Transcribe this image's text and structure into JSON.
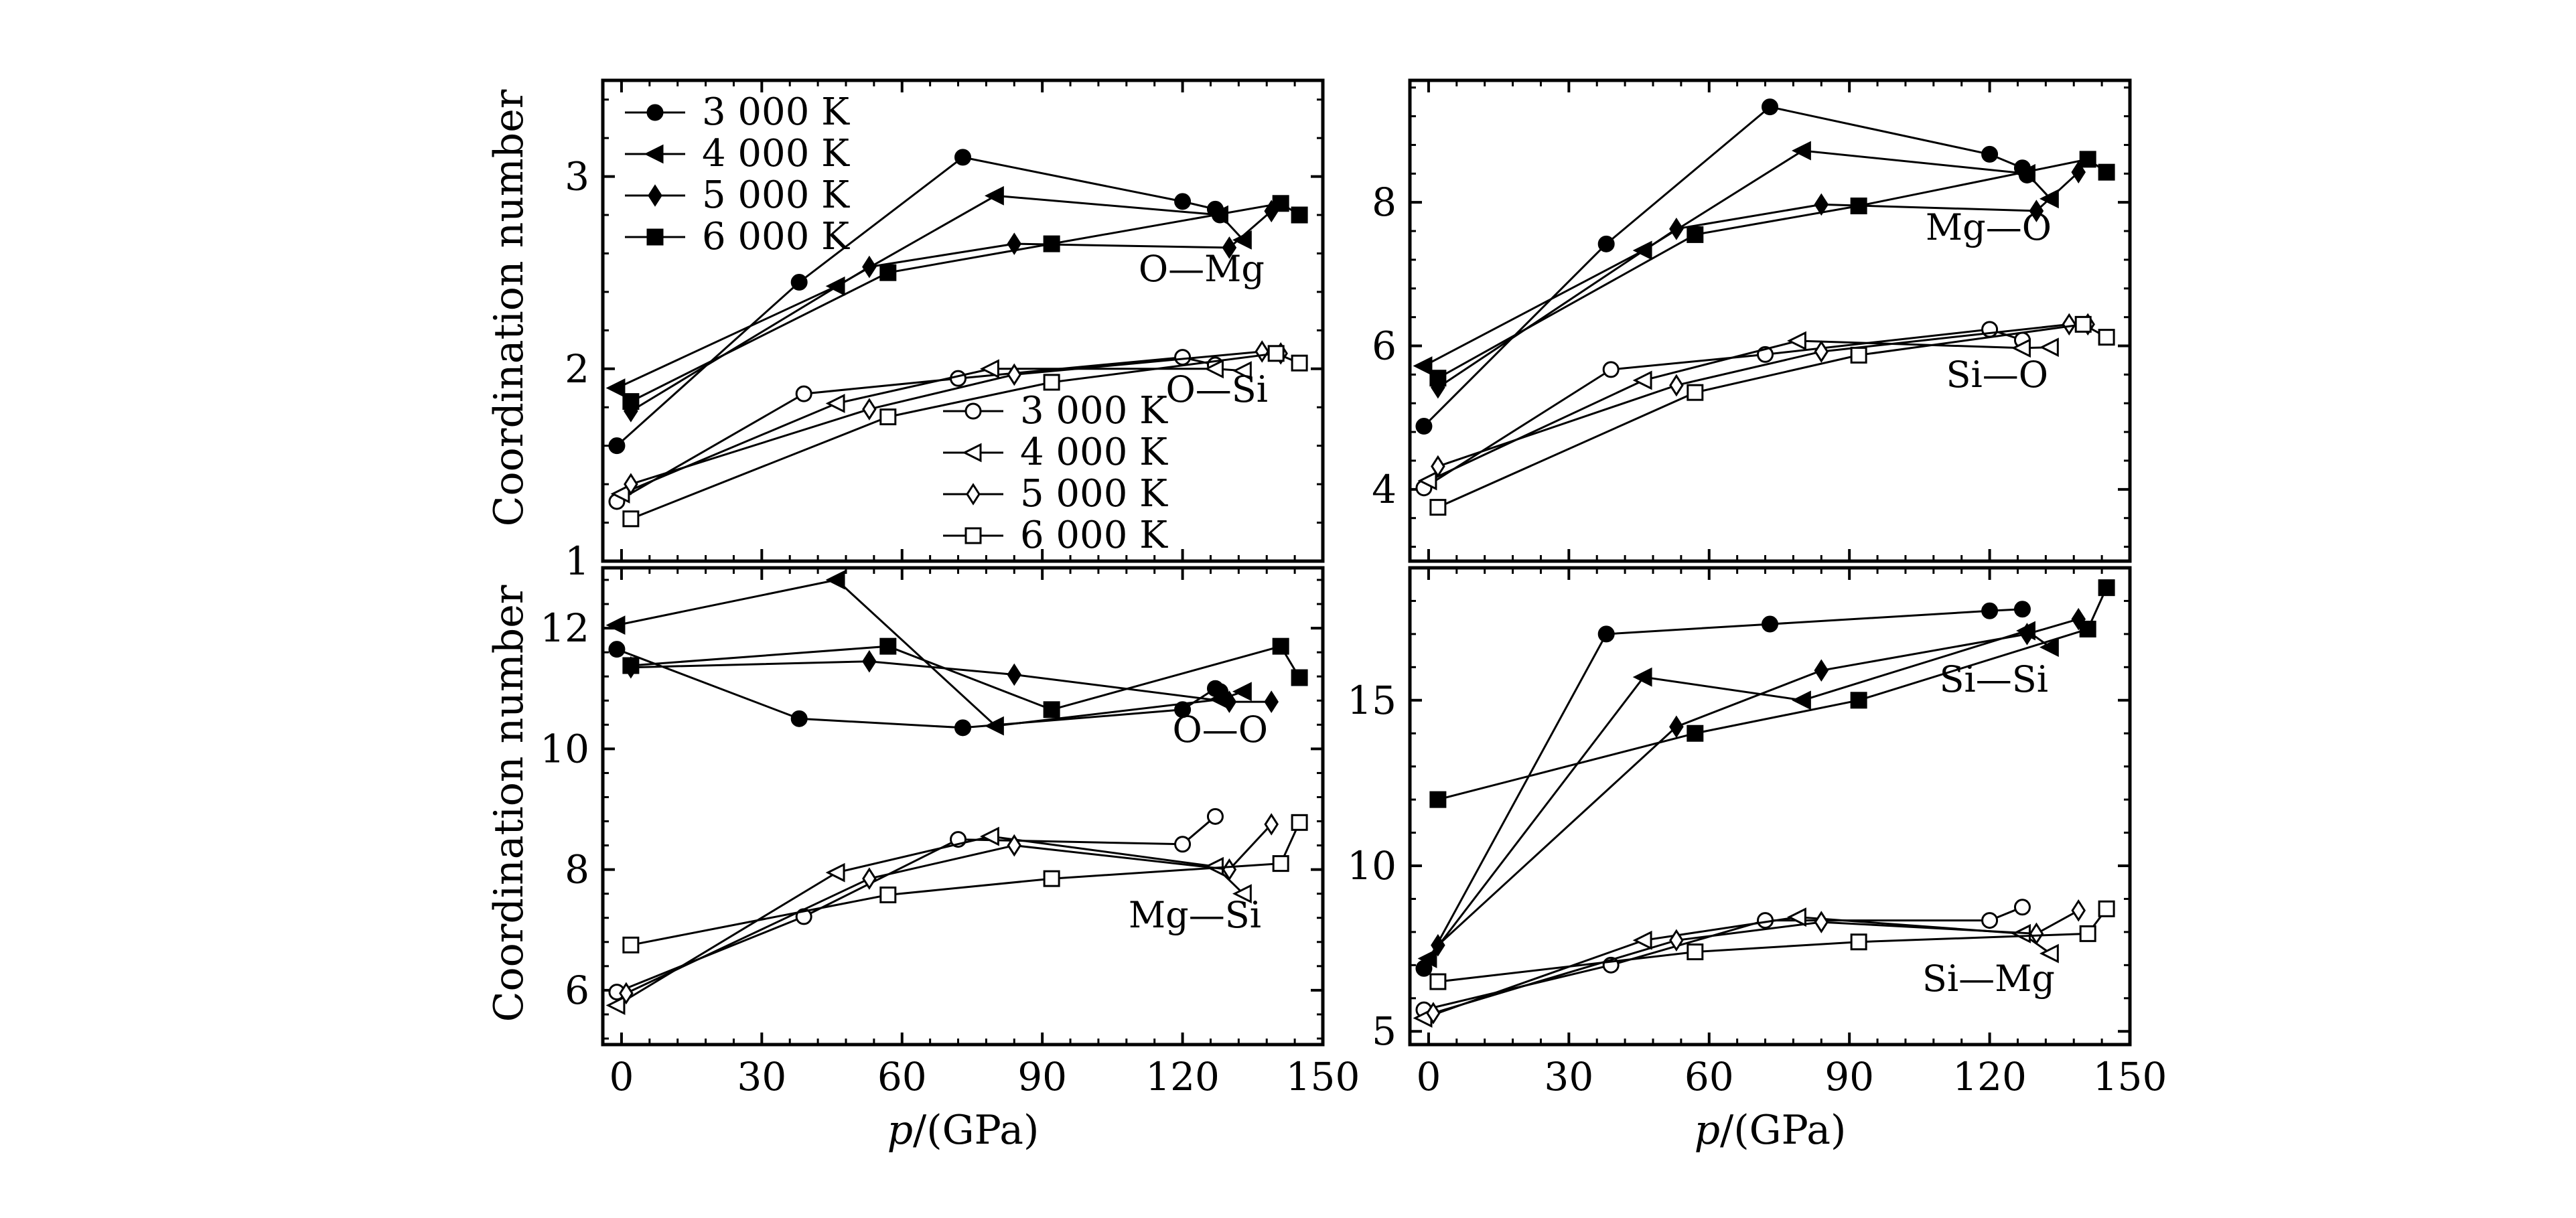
{
  "figure": {
    "y_label": "Coordination number",
    "x_label_symbol": "p",
    "x_label_unit": "/(GPa)"
  },
  "temperatures": [
    "3 000 K",
    "4 000 K",
    "5 000 K",
    "6 000 K"
  ],
  "marker_shapes": [
    "circle",
    "triangle-left",
    "diamond",
    "square"
  ],
  "colors": {
    "line": "#000000",
    "filled": "#000000",
    "open": "#ffffff"
  },
  "chart_data": [
    {
      "type": "line",
      "panel": "top-left",
      "xlim": [
        -4,
        150
      ],
      "ylim": [
        1,
        3.5
      ],
      "xticks": [
        0,
        30,
        60,
        90,
        120,
        150
      ],
      "yticks": [
        1,
        2,
        3
      ],
      "ytick_labels": [
        "1",
        "2",
        "3"
      ],
      "show_xtick_labels": false,
      "groups": [
        {
          "label": "O—Mg",
          "fill": "filled",
          "series": [
            {
              "name": "3 000 K",
              "marker": "circle",
              "x": [
                -1,
                38,
                73,
                120,
                127,
                128
              ],
              "y": [
                1.6,
                2.45,
                3.1,
                2.87,
                2.83,
                2.8
              ]
            },
            {
              "name": "4 000 K",
              "marker": "triangle-left",
              "x": [
                -1,
                46,
                80,
                128,
                133
              ],
              "y": [
                1.9,
                2.43,
                2.9,
                2.8,
                2.67
              ]
            },
            {
              "name": "5 000 K",
              "marker": "diamond",
              "x": [
                2,
                53,
                84,
                130,
                139
              ],
              "y": [
                1.78,
                2.53,
                2.65,
                2.63,
                2.82
              ]
            },
            {
              "name": "6 000 K",
              "marker": "square",
              "x": [
                2,
                57,
                92,
                141,
                145
              ],
              "y": [
                1.83,
                2.5,
                2.65,
                2.86,
                2.8
              ]
            }
          ]
        },
        {
          "label": "O—Si",
          "fill": "open",
          "series": [
            {
              "name": "3 000 K",
              "marker": "circle",
              "x": [
                -1,
                39,
                72,
                120,
                127
              ],
              "y": [
                1.31,
                1.87,
                1.95,
                2.06,
                2.02
              ]
            },
            {
              "name": "4 000 K",
              "marker": "triangle-left",
              "x": [
                0,
                46,
                79,
                127,
                133
              ],
              "y": [
                1.35,
                1.82,
                2.0,
                2.0,
                1.99
              ]
            },
            {
              "name": "5 000 K",
              "marker": "diamond",
              "x": [
                2,
                53,
                84,
                137,
                141
              ],
              "y": [
                1.4,
                1.79,
                1.97,
                2.09,
                2.08
              ]
            },
            {
              "name": "6 000 K",
              "marker": "square",
              "x": [
                2,
                57,
                92,
                140,
                145
              ],
              "y": [
                1.22,
                1.75,
                1.93,
                2.08,
                2.03
              ]
            }
          ]
        }
      ],
      "legends": [
        {
          "group": 0,
          "position": "top-left"
        },
        {
          "group": 1,
          "position": "lower-middle"
        }
      ]
    },
    {
      "type": "line",
      "panel": "top-right",
      "xlim": [
        -4,
        150
      ],
      "ylim": [
        3,
        9.7
      ],
      "xticks": [
        0,
        30,
        60,
        90,
        120,
        150
      ],
      "yticks": [
        4,
        6,
        8
      ],
      "ytick_labels": [
        "4",
        "6",
        "8"
      ],
      "show_xtick_labels": false,
      "groups": [
        {
          "label": "Mg—O",
          "fill": "filled",
          "series": [
            {
              "name": "3 000 K",
              "marker": "circle",
              "x": [
                -1,
                38,
                73,
                120,
                127,
                128
              ],
              "y": [
                4.88,
                7.42,
                9.33,
                8.67,
                8.48,
                8.38
              ]
            },
            {
              "name": "4 000 K",
              "marker": "triangle-left",
              "x": [
                -1,
                46,
                80,
                128,
                133
              ],
              "y": [
                5.72,
                7.33,
                8.72,
                8.4,
                8.05
              ]
            },
            {
              "name": "5 000 K",
              "marker": "diamond",
              "x": [
                2,
                53,
                84,
                130,
                139
              ],
              "y": [
                5.42,
                7.63,
                7.97,
                7.88,
                8.42
              ]
            },
            {
              "name": "6 000 K",
              "marker": "square",
              "x": [
                2,
                57,
                92,
                141,
                145
              ],
              "y": [
                5.55,
                7.55,
                7.95,
                8.6,
                8.42
              ]
            }
          ]
        },
        {
          "label": "Si—O",
          "fill": "open",
          "series": [
            {
              "name": "3 000 K",
              "marker": "circle",
              "x": [
                -1,
                39,
                72,
                120,
                127
              ],
              "y": [
                4.02,
                5.67,
                5.88,
                6.23,
                6.08
              ]
            },
            {
              "name": "4 000 K",
              "marker": "triangle-left",
              "x": [
                0,
                46,
                79,
                127,
                133
              ],
              "y": [
                4.12,
                5.52,
                6.07,
                5.97,
                5.98
              ]
            },
            {
              "name": "5 000 K",
              "marker": "diamond",
              "x": [
                2,
                53,
                84,
                137,
                141
              ],
              "y": [
                4.32,
                5.45,
                5.92,
                6.3,
                6.3
              ]
            },
            {
              "name": "6 000 K",
              "marker": "square",
              "x": [
                2,
                57,
                92,
                140,
                145
              ],
              "y": [
                3.75,
                5.35,
                5.87,
                6.3,
                6.12
              ]
            }
          ]
        }
      ]
    },
    {
      "type": "line",
      "panel": "bottom-left",
      "xlim": [
        -4,
        150
      ],
      "ylim": [
        5.1,
        13.0
      ],
      "xticks": [
        0,
        30,
        60,
        90,
        120,
        150
      ],
      "yticks": [
        6,
        8,
        10,
        12
      ],
      "ytick_labels": [
        "6",
        "8",
        "10",
        "12"
      ],
      "show_xtick_labels": true,
      "groups": [
        {
          "label": "O—O",
          "fill": "filled",
          "series": [
            {
              "name": "3 000 K",
              "marker": "circle",
              "x": [
                -1,
                38,
                73,
                120,
                127,
                128
              ],
              "y": [
                11.65,
                10.5,
                10.35,
                10.65,
                11.0,
                10.95
              ]
            },
            {
              "name": "4 000 K",
              "marker": "triangle-left",
              "x": [
                -1,
                46,
                80,
                128,
                133
              ],
              "y": [
                12.05,
                12.8,
                10.38,
                10.82,
                10.95
              ]
            },
            {
              "name": "5 000 K",
              "marker": "diamond",
              "x": [
                2,
                53,
                84,
                130,
                139
              ],
              "y": [
                11.35,
                11.45,
                11.23,
                10.78,
                10.78
              ]
            },
            {
              "name": "6 000 K",
              "marker": "square",
              "x": [
                2,
                57,
                92,
                141,
                145
              ],
              "y": [
                11.38,
                11.7,
                10.65,
                11.7,
                11.18
              ]
            }
          ]
        },
        {
          "label": "Mg—Si",
          "fill": "open",
          "series": [
            {
              "name": "3 000 K",
              "marker": "circle",
              "x": [
                -1,
                39,
                72,
                120,
                127
              ],
              "y": [
                5.97,
                7.22,
                8.5,
                8.42,
                8.88
              ]
            },
            {
              "name": "4 000 K",
              "marker": "triangle-left",
              "x": [
                -1,
                46,
                79,
                127,
                133
              ],
              "y": [
                5.75,
                7.95,
                8.55,
                8.05,
                7.6
              ]
            },
            {
              "name": "5 000 K",
              "marker": "diamond",
              "x": [
                1,
                53,
                84,
                130,
                139
              ],
              "y": [
                5.95,
                7.85,
                8.4,
                8.0,
                8.75
              ]
            },
            {
              "name": "6 000 K",
              "marker": "square",
              "x": [
                2,
                57,
                92,
                141,
                145
              ],
              "y": [
                6.75,
                7.58,
                7.85,
                8.1,
                8.78
              ]
            }
          ]
        }
      ]
    },
    {
      "type": "line",
      "panel": "bottom-right",
      "xlim": [
        -4,
        150
      ],
      "ylim": [
        4.6,
        19.0
      ],
      "xticks": [
        0,
        30,
        60,
        90,
        120,
        150
      ],
      "yticks": [
        5,
        10,
        15
      ],
      "ytick_labels": [
        "5",
        "10",
        "15"
      ],
      "show_xtick_labels": true,
      "groups": [
        {
          "label": "Si—Si",
          "fill": "filled",
          "series": [
            {
              "name": "3 000 K",
              "marker": "circle",
              "x": [
                -1,
                38,
                73,
                120,
                127
              ],
              "y": [
                6.9,
                17.0,
                17.3,
                17.7,
                17.75
              ]
            },
            {
              "name": "4 000 K",
              "marker": "triangle-left",
              "x": [
                0,
                46,
                80,
                128,
                133
              ],
              "y": [
                7.2,
                15.7,
                15.0,
                17.1,
                16.6
              ]
            },
            {
              "name": "5 000 K",
              "marker": "diamond",
              "x": [
                2,
                53,
                84,
                128,
                139
              ],
              "y": [
                7.6,
                14.2,
                15.9,
                17.0,
                17.45
              ]
            },
            {
              "name": "6 000 K",
              "marker": "square",
              "x": [
                2,
                57,
                92,
                141,
                145
              ],
              "y": [
                12.0,
                14.0,
                15.0,
                17.15,
                18.4
              ]
            }
          ]
        },
        {
          "label": "Si—Mg",
          "fill": "open",
          "series": [
            {
              "name": "3 000 K",
              "marker": "circle",
              "x": [
                -1,
                39,
                72,
                120,
                127
              ],
              "y": [
                5.65,
                7.0,
                8.35,
                8.35,
                8.75
              ]
            },
            {
              "name": "4 000 K",
              "marker": "triangle-left",
              "x": [
                -1,
                46,
                79,
                127,
                133
              ],
              "y": [
                5.4,
                7.75,
                8.45,
                7.95,
                7.35
              ]
            },
            {
              "name": "5 000 K",
              "marker": "diamond",
              "x": [
                1,
                53,
                84,
                130,
                139
              ],
              "y": [
                5.55,
                7.75,
                8.3,
                7.95,
                8.65
              ]
            },
            {
              "name": "6 000 K",
              "marker": "square",
              "x": [
                2,
                57,
                92,
                141,
                145
              ],
              "y": [
                6.5,
                7.4,
                7.7,
                7.95,
                8.7
              ]
            }
          ]
        }
      ]
    }
  ]
}
